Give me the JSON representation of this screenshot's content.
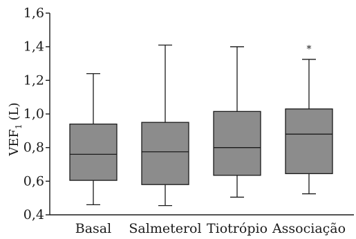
{
  "chart_data": {
    "type": "box",
    "title": "",
    "ylabel": {
      "main": "VEF",
      "sub": "1",
      "unit": "(L)"
    },
    "ylim": [
      0.4,
      1.6
    ],
    "yticks": [
      {
        "value": 0.4,
        "label": "0,4"
      },
      {
        "value": 0.6,
        "label": "0,6"
      },
      {
        "value": 0.8,
        "label": "0,8"
      },
      {
        "value": 1.0,
        "label": "1,0"
      },
      {
        "value": 1.2,
        "label": "1,2"
      },
      {
        "value": 1.4,
        "label": "1,4"
      },
      {
        "value": 1.6,
        "label": "1,6"
      }
    ],
    "categories": [
      "Basal",
      "Salmeterol",
      "Tiotrópio",
      "Associação"
    ],
    "boxes": [
      {
        "category": "Basal",
        "min": 0.46,
        "q1": 0.605,
        "median": 0.76,
        "q3": 0.94,
        "max": 1.24
      },
      {
        "category": "Salmeterol",
        "min": 0.455,
        "q1": 0.58,
        "median": 0.775,
        "q3": 0.95,
        "max": 1.41
      },
      {
        "category": "Tiotrópio",
        "min": 0.505,
        "q1": 0.635,
        "median": 0.8,
        "q3": 1.015,
        "max": 1.4
      },
      {
        "category": "Associação",
        "min": 0.525,
        "q1": 0.645,
        "median": 0.88,
        "q3": 1.03,
        "max": 1.325,
        "outliers": [
          {
            "value": 1.4,
            "marker": "*"
          }
        ]
      }
    ],
    "colors": {
      "box_fill": "#8c8c8c",
      "line": "#1a1a1a"
    },
    "grid": false
  }
}
